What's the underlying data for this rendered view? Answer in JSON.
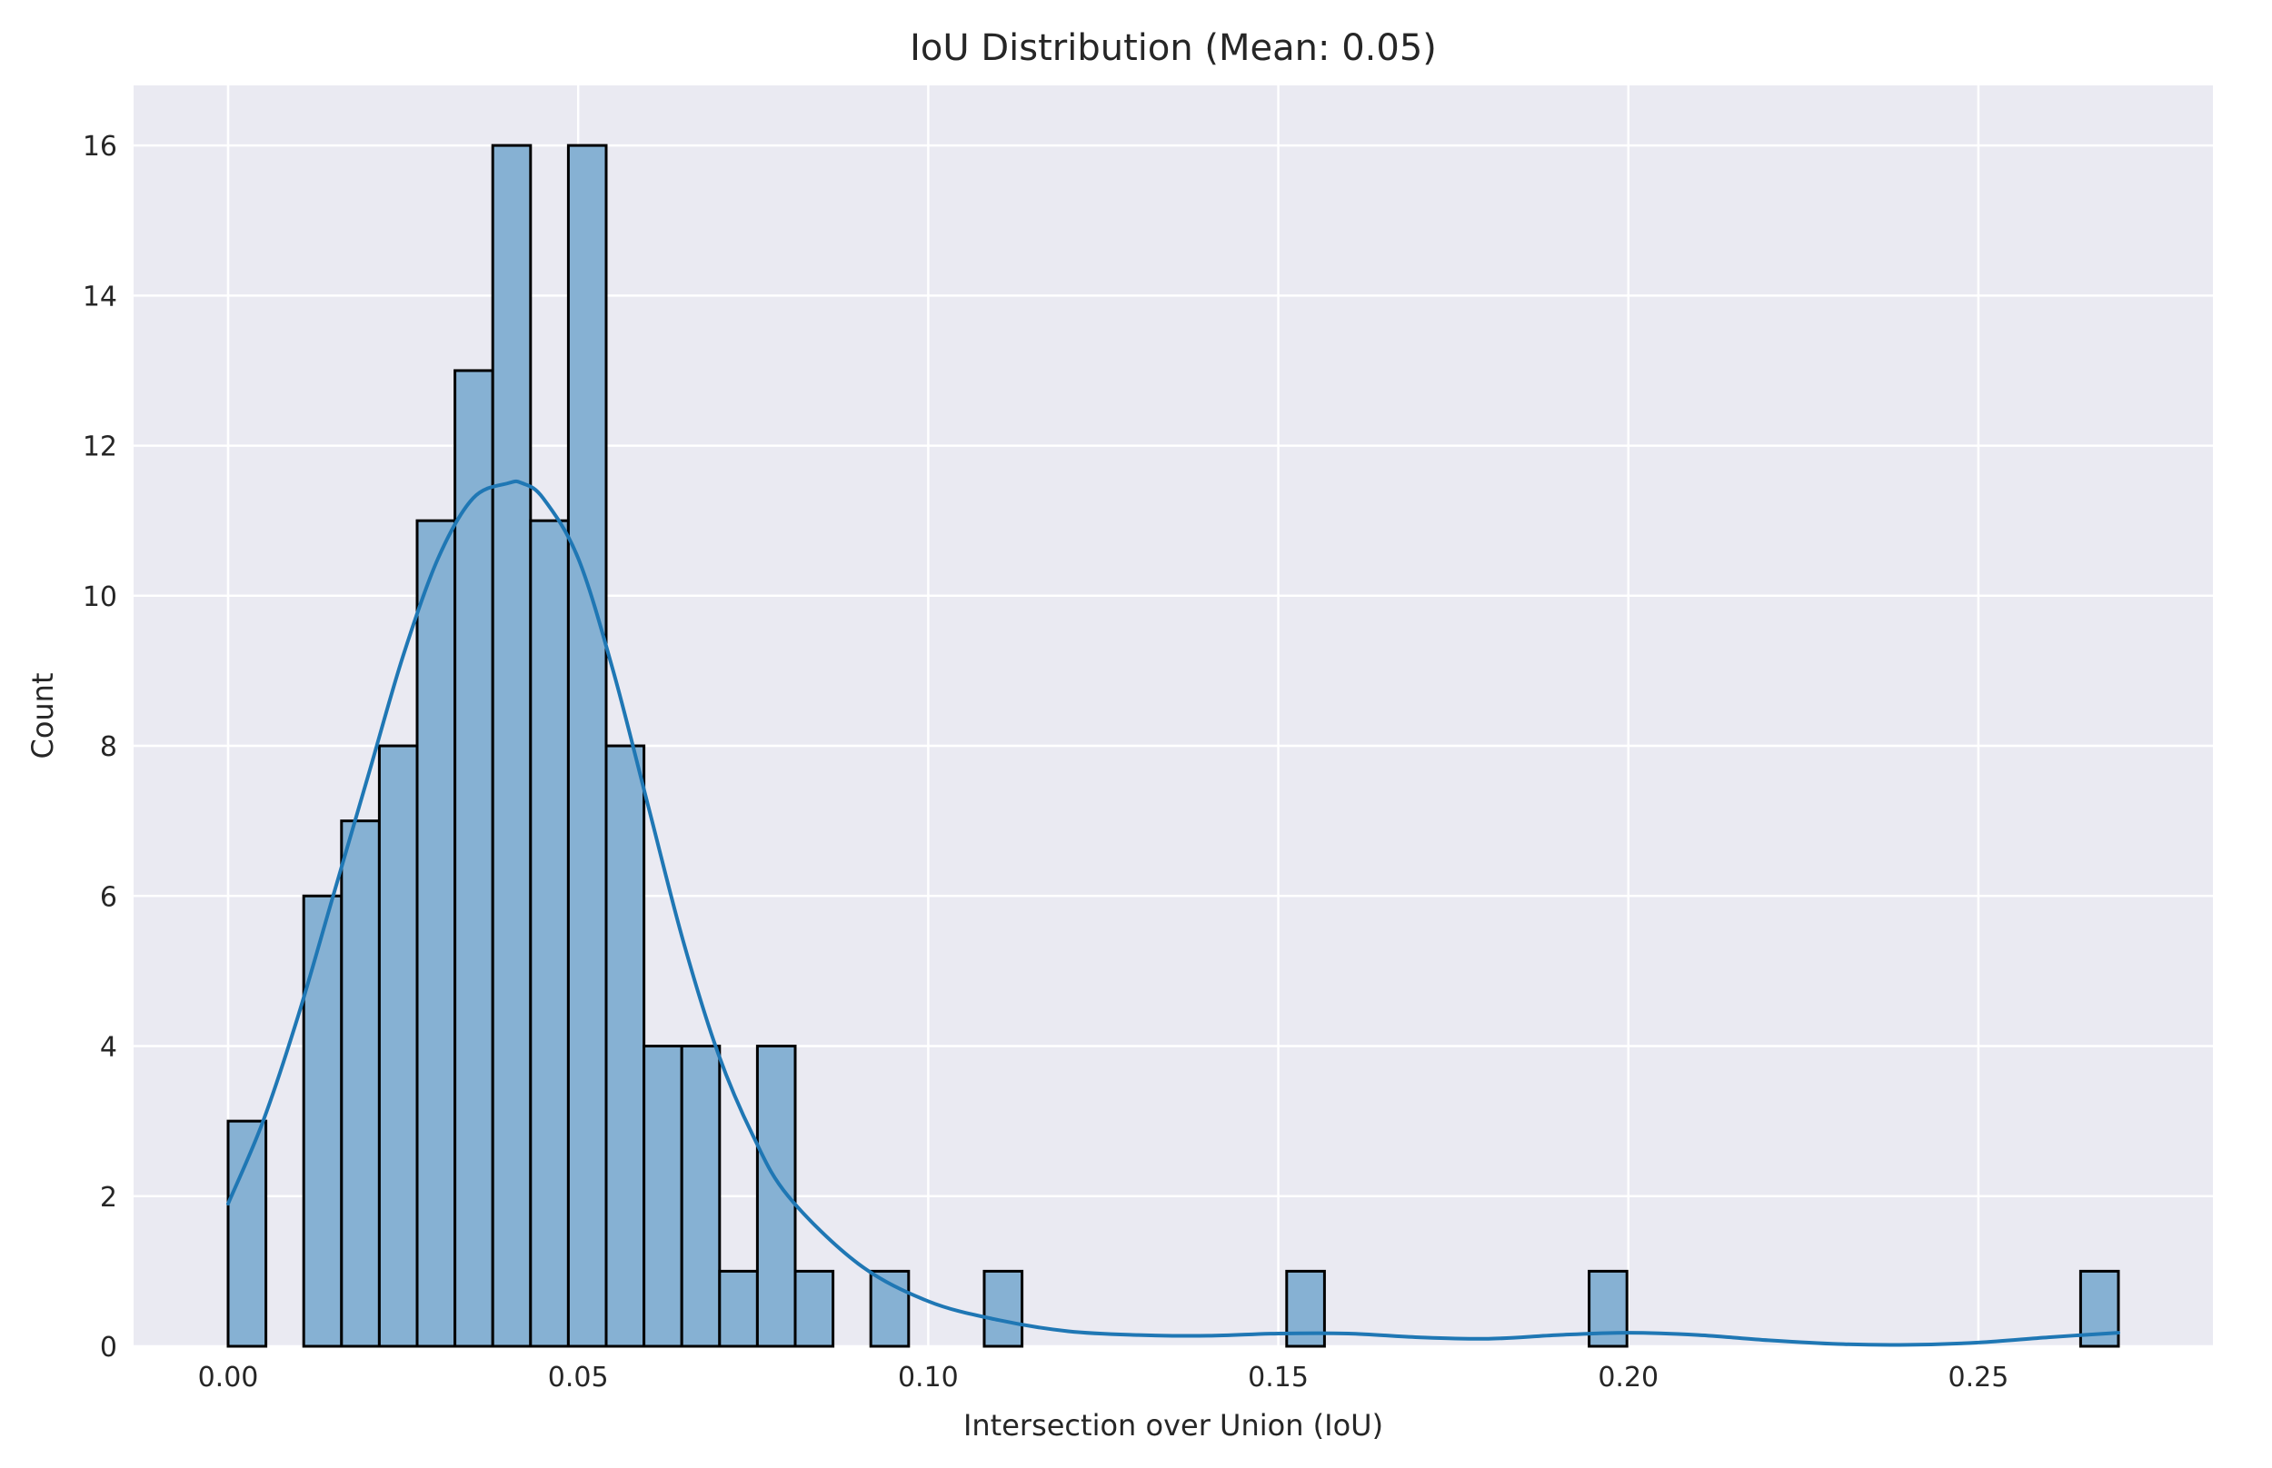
{
  "chart_data": {
    "type": "bar",
    "title": "IoU Distribution (Mean: 0.05)",
    "xlabel": "Intersection over Union (IoU)",
    "ylabel": "Count",
    "xlim": [
      -0.0135,
      0.2835
    ],
    "ylim": [
      0,
      16.8
    ],
    "xticks": [
      0.0,
      0.05,
      0.1,
      0.15,
      0.2,
      0.25
    ],
    "xtick_labels": [
      "0.00",
      "0.05",
      "0.10",
      "0.15",
      "0.20",
      "0.25"
    ],
    "yticks": [
      0,
      2,
      4,
      6,
      8,
      10,
      12,
      14,
      16
    ],
    "ytick_labels": [
      "0",
      "2",
      "4",
      "6",
      "8",
      "10",
      "12",
      "14",
      "16"
    ],
    "grid": true,
    "bin_width": 0.0054,
    "bins": [
      {
        "x": 0.0,
        "count": 3
      },
      {
        "x": 0.0108,
        "count": 6
      },
      {
        "x": 0.0162,
        "count": 7
      },
      {
        "x": 0.0216,
        "count": 8
      },
      {
        "x": 0.027,
        "count": 11
      },
      {
        "x": 0.0324,
        "count": 13
      },
      {
        "x": 0.0378,
        "count": 16
      },
      {
        "x": 0.0432,
        "count": 11
      },
      {
        "x": 0.0486,
        "count": 16
      },
      {
        "x": 0.054,
        "count": 8
      },
      {
        "x": 0.0594,
        "count": 4
      },
      {
        "x": 0.0648,
        "count": 4
      },
      {
        "x": 0.0702,
        "count": 1
      },
      {
        "x": 0.0756,
        "count": 4
      },
      {
        "x": 0.081,
        "count": 1
      },
      {
        "x": 0.0918,
        "count": 1
      },
      {
        "x": 0.108,
        "count": 1
      },
      {
        "x": 0.1512,
        "count": 1
      },
      {
        "x": 0.1944,
        "count": 1
      },
      {
        "x": 0.2646,
        "count": 1
      }
    ],
    "kde": {
      "x": [
        0.0,
        0.005,
        0.01,
        0.015,
        0.02,
        0.025,
        0.03,
        0.035,
        0.04,
        0.042,
        0.045,
        0.05,
        0.055,
        0.06,
        0.065,
        0.07,
        0.075,
        0.08,
        0.09,
        0.1,
        0.11,
        0.12,
        0.13,
        0.14,
        0.15,
        0.16,
        0.17,
        0.18,
        0.19,
        0.2,
        0.21,
        0.22,
        0.23,
        0.24,
        0.25,
        0.26,
        0.27
      ],
      "y": [
        1.9,
        3.0,
        4.4,
        6.0,
        7.6,
        9.2,
        10.5,
        11.3,
        11.5,
        11.5,
        11.3,
        10.5,
        9.0,
        7.2,
        5.4,
        3.9,
        2.8,
        2.0,
        1.1,
        0.6,
        0.35,
        0.2,
        0.15,
        0.14,
        0.17,
        0.17,
        0.12,
        0.1,
        0.15,
        0.18,
        0.15,
        0.08,
        0.03,
        0.02,
        0.05,
        0.12,
        0.18
      ]
    },
    "colors": {
      "background": "#eaeaf2",
      "grid": "#ffffff",
      "bar_fill": "#86b1d3",
      "bar_edge": "#000000",
      "kde_line": "#1f77b4",
      "text": "#262626"
    }
  }
}
